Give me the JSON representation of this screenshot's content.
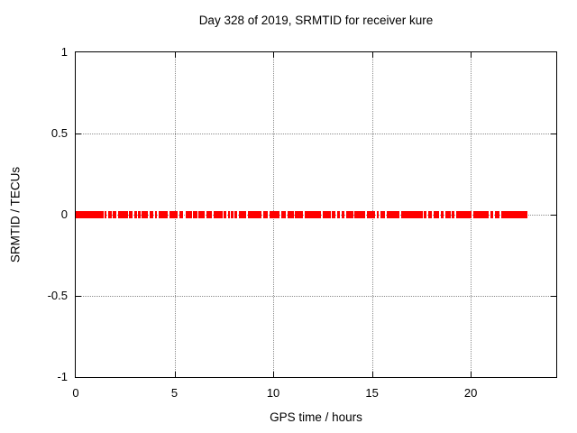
{
  "colors": {
    "series": "#ff0000",
    "grid": "#8c8c8c",
    "axis": "#000000",
    "background": "#ffffff",
    "text": "#000000"
  },
  "chart_data": {
    "type": "scatter",
    "title": "Day 328 of 2019, SRMTID for receiver kure",
    "xlabel": "GPS time / hours",
    "ylabel": "SRMTID / TECUs",
    "xlim": [
      0,
      24.33
    ],
    "ylim": [
      -1,
      1
    ],
    "xticks": [
      0,
      5,
      10,
      15,
      20
    ],
    "yticks": [
      1,
      0.5,
      0,
      -0.5,
      -1
    ],
    "grid": true,
    "legend": false,
    "marker": "square",
    "series": [
      {
        "name": "SRMTID",
        "color": "#ff0000",
        "y_value": 0,
        "x_segments": [
          [
            0.0,
            1.41
          ],
          [
            1.45,
            1.55
          ],
          [
            1.64,
            1.82
          ],
          [
            1.86,
            2.05
          ],
          [
            2.14,
            2.64
          ],
          [
            2.68,
            2.86
          ],
          [
            2.95,
            3.09
          ],
          [
            3.14,
            3.27
          ],
          [
            3.32,
            3.64
          ],
          [
            3.73,
            3.91
          ],
          [
            4.0,
            4.09
          ],
          [
            4.18,
            4.64
          ],
          [
            4.77,
            5.18
          ],
          [
            5.23,
            5.45
          ],
          [
            5.55,
            5.91
          ],
          [
            5.95,
            6.14
          ],
          [
            6.23,
            6.55
          ],
          [
            6.64,
            6.91
          ],
          [
            7.0,
            7.45
          ],
          [
            7.5,
            7.64
          ],
          [
            7.73,
            7.82
          ],
          [
            7.86,
            8.0
          ],
          [
            8.05,
            8.18
          ],
          [
            8.27,
            8.64
          ],
          [
            8.73,
            9.41
          ],
          [
            9.5,
            9.73
          ],
          [
            9.82,
            10.32
          ],
          [
            10.41,
            10.64
          ],
          [
            10.73,
            11.05
          ],
          [
            11.09,
            11.5
          ],
          [
            11.59,
            12.41
          ],
          [
            12.5,
            12.91
          ],
          [
            12.95,
            13.14
          ],
          [
            13.23,
            13.36
          ],
          [
            13.45,
            13.59
          ],
          [
            13.68,
            14.05
          ],
          [
            14.09,
            14.64
          ],
          [
            14.73,
            15.14
          ],
          [
            15.23,
            15.36
          ],
          [
            15.45,
            15.64
          ],
          [
            15.73,
            16.41
          ],
          [
            16.5,
            17.05
          ],
          [
            17.09,
            17.59
          ],
          [
            17.64,
            17.77
          ],
          [
            17.86,
            18.05
          ],
          [
            18.14,
            18.41
          ],
          [
            18.5,
            18.64
          ],
          [
            18.73,
            19.0
          ],
          [
            19.05,
            19.18
          ],
          [
            19.27,
            20.05
          ],
          [
            20.14,
            20.91
          ],
          [
            21.0,
            21.14
          ],
          [
            21.23,
            21.45
          ],
          [
            21.55,
            22.85
          ]
        ]
      }
    ]
  }
}
